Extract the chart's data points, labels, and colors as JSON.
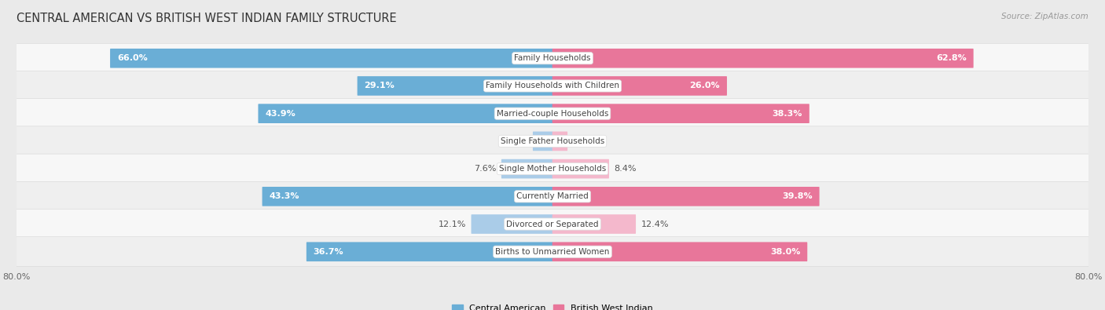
{
  "title": "CENTRAL AMERICAN VS BRITISH WEST INDIAN FAMILY STRUCTURE",
  "source": "Source: ZipAtlas.com",
  "categories": [
    "Family Households",
    "Family Households with Children",
    "Married-couple Households",
    "Single Father Households",
    "Single Mother Households",
    "Currently Married",
    "Divorced or Separated",
    "Births to Unmarried Women"
  ],
  "central_american": [
    66.0,
    29.1,
    43.9,
    2.9,
    7.6,
    43.3,
    12.1,
    36.7
  ],
  "british_west_indian": [
    62.8,
    26.0,
    38.3,
    2.2,
    8.4,
    39.8,
    12.4,
    38.0
  ],
  "max_val": 80.0,
  "color_ca_large": "#6aaed6",
  "color_ca_small": "#aacce8",
  "color_bwi_large": "#e8769a",
  "color_bwi_small": "#f4b8cc",
  "bg_color": "#eaeaea",
  "row_bg_odd": "#f7f7f7",
  "row_bg_even": "#efefef",
  "label_fontsize": 8.0,
  "title_fontsize": 10.5,
  "source_fontsize": 7.5,
  "axis_label_fontsize": 8.0
}
